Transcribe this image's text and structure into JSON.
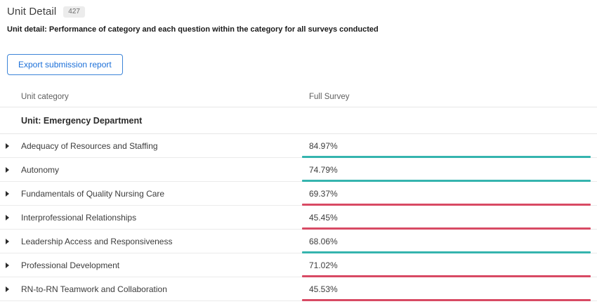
{
  "page": {
    "title": "Unit Detail",
    "badge_count": "427",
    "subtitle": "Unit detail: Performance of category and each question within the category for all surveys conducted"
  },
  "toolbar": {
    "export_button_label": "Export submission report"
  },
  "table": {
    "columns": {
      "category": "Unit category",
      "value": "Full Survey"
    },
    "group_row_label": "Unit: Emergency Department",
    "rows": [
      {
        "category": "Adequacy of Resources and Staffing",
        "value": "84.97%",
        "status": "positive"
      },
      {
        "category": "Autonomy",
        "value": "74.79%",
        "status": "positive"
      },
      {
        "category": "Fundamentals of Quality Nursing Care",
        "value": "69.37%",
        "status": "negative"
      },
      {
        "category": "Interprofessional Relationships",
        "value": "45.45%",
        "status": "negative"
      },
      {
        "category": "Leadership Access and Responsiveness",
        "value": "68.06%",
        "status": "positive"
      },
      {
        "category": "Professional Development",
        "value": "71.02%",
        "status": "negative"
      },
      {
        "category": "RN-to-RN Teamwork and Collaboration",
        "value": "45.53%",
        "status": "negative"
      }
    ]
  },
  "colors": {
    "positive_bar": "#35b4ae",
    "negative_bar": "#d84a64",
    "button_blue": "#1b6fd8",
    "badge_background": "#ececec"
  }
}
